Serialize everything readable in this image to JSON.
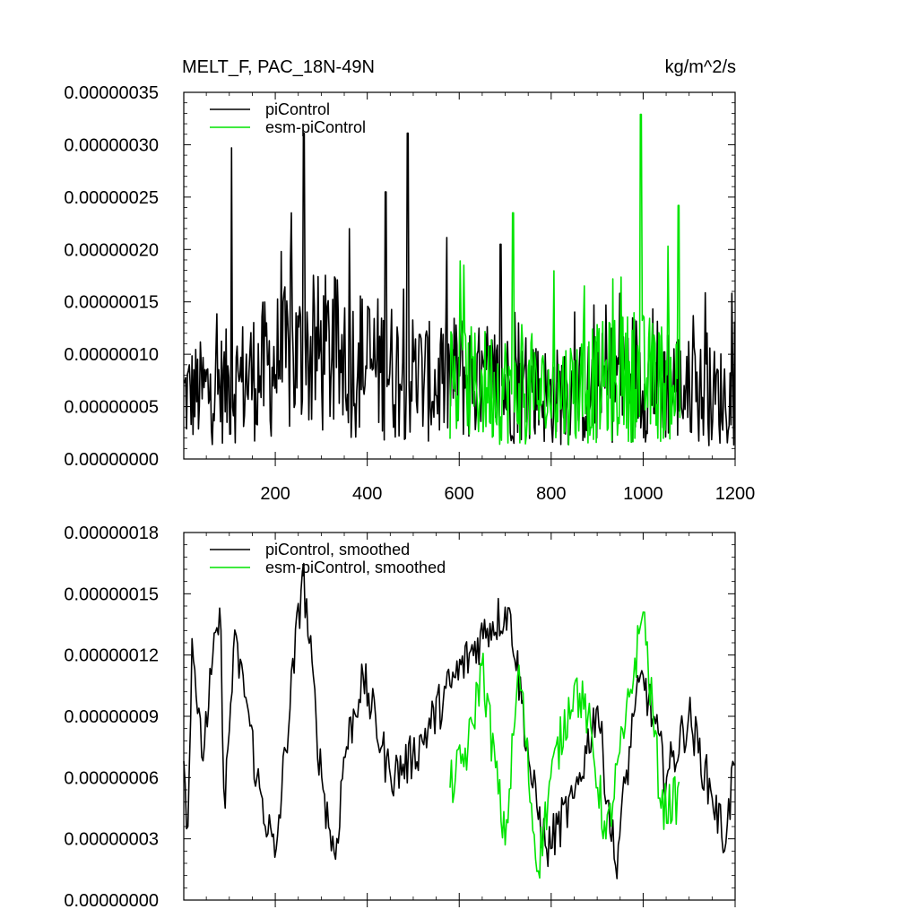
{
  "page": {
    "title_left": "MELT_F, PAC_18N-49N",
    "title_right": "kg/m^2/s"
  },
  "colors": {
    "picontrol": "#000000",
    "esm_picontrol": "#00e400",
    "axis": "#000000"
  },
  "chart_data": [
    {
      "type": "line",
      "title": "MELT_F, PAC_18N-49N",
      "units": "kg/m^2/s",
      "xlim": [
        1,
        1200
      ],
      "ylim": [
        0.0,
        3.5e-07
      ],
      "x_ticks": [
        200,
        400,
        600,
        800,
        1000,
        1200
      ],
      "x_tick_labels": [
        "200",
        "400",
        "600",
        "800",
        "1000",
        "1200"
      ],
      "y_ticks": [
        0.0,
        5e-08,
        1e-07,
        1.5e-07,
        2e-07,
        2.5e-07,
        3e-07,
        3.5e-07
      ],
      "y_tick_labels": [
        "0.00000000",
        "0.00000005",
        "0.00000010",
        "0.00000015",
        "0.00000020",
        "0.00000025",
        "0.00000030",
        "0.00000035"
      ],
      "grid": false,
      "legend_position": "top-left",
      "series": [
        {
          "name": "piControl",
          "x_range": [
            1,
            1200
          ],
          "peaks": [
            [
              105,
              2.97e-07
            ],
            [
              262,
              3.11e-07
            ],
            [
              488,
              3.11e-07
            ],
            [
              235,
              2.35e-07
            ],
            [
              440,
              2.55e-07
            ],
            [
              690,
              2.05e-07
            ]
          ],
          "values_approx": [
            6e-08,
            6.5e-08,
            7e-08,
            8e-08,
            9e-08,
            9.5e-08,
            1e-07,
            9.5e-08,
            9e-08,
            8.5e-08,
            8e-08,
            7e-08,
            8e-08,
            7e-08,
            7e-08,
            6.5e-08,
            6e-08,
            6e-08,
            6.5e-08,
            8e-08,
            8e-08,
            7.5e-08,
            6.5e-08,
            6e-08,
            6e-08
          ]
        },
        {
          "name": "esm-piControl",
          "x_range": [
            580,
            1080
          ],
          "peaks": [
            [
              995,
              3.29e-07
            ],
            [
              1077,
              2.42e-07
            ],
            [
              717,
              2.35e-07
            ],
            [
              610,
              1.85e-07
            ]
          ],
          "values_approx": [
            7.5e-08,
            7e-08,
            7e-08,
            6.5e-08,
            6e-08,
            6.5e-08,
            7e-08,
            7.5e-08,
            8e-08,
            7.5e-08,
            7e-08
          ]
        }
      ]
    },
    {
      "type": "line",
      "xlim": [
        1,
        1200
      ],
      "ylim": [
        0.0,
        1.8e-07
      ],
      "x_ticks": [
        200,
        400,
        600,
        800,
        1000,
        1200
      ],
      "y_ticks": [
        0.0,
        3e-08,
        6e-08,
        9e-08,
        1.2e-07,
        1.5e-07,
        1.8e-07
      ],
      "y_tick_labels": [
        "0.00000000",
        "0.00000003",
        "0.00000006",
        "0.00000009",
        "0.00000012",
        "0.00000015",
        "0.00000018"
      ],
      "grid": false,
      "legend_position": "top-left",
      "series": [
        {
          "name": "piControl, smoothed",
          "x_range": [
            1,
            1200
          ],
          "anchors": [
            [
              1,
              6.8e-08
            ],
            [
              10,
              3.6e-08
            ],
            [
              20,
              1.28e-07
            ],
            [
              40,
              7e-08
            ],
            [
              80,
              1.43e-07
            ],
            [
              90,
              4.5e-08
            ],
            [
              110,
              1.23e-07
            ],
            [
              130,
              1.1e-07
            ],
            [
              160,
              6e-08
            ],
            [
              200,
              2.1e-08
            ],
            [
              260,
              1.61e-07
            ],
            [
              300,
              6e-08
            ],
            [
              330,
              2e-08
            ],
            [
              350,
              7e-08
            ],
            [
              390,
              1.1e-07
            ],
            [
              450,
              6e-08
            ],
            [
              500,
              7e-08
            ],
            [
              580,
              1.05e-07
            ],
            [
              660,
              1.33e-07
            ],
            [
              710,
              1.43e-07
            ],
            [
              760,
              5.5e-08
            ],
            [
              790,
              2.5e-08
            ],
            [
              850,
              5e-08
            ],
            [
              900,
              9.5e-08
            ],
            [
              940,
              1.7e-08
            ],
            [
              980,
              9e-08
            ],
            [
              1000,
              1.1e-07
            ],
            [
              1050,
              6e-08
            ],
            [
              1100,
              9e-08
            ],
            [
              1150,
              5e-08
            ],
            [
              1180,
              2.8e-08
            ],
            [
              1200,
              7.4e-08
            ]
          ]
        },
        {
          "name": "esm-piControl, smoothed",
          "x_range": [
            580,
            1080
          ],
          "anchors": [
            [
              580,
              5.5e-08
            ],
            [
              620,
              7.5e-08
            ],
            [
              650,
              1.15e-07
            ],
            [
              700,
              2.7e-08
            ],
            [
              730,
              1.15e-07
            ],
            [
              770,
              1.4e-08
            ],
            [
              800,
              6e-08
            ],
            [
              850,
              1.05e-07
            ],
            [
              880,
              9e-08
            ],
            [
              920,
              3e-08
            ],
            [
              960,
              8.5e-08
            ],
            [
              1000,
              1.41e-07
            ],
            [
              1040,
              4.5e-08
            ],
            [
              1080,
              5e-08
            ]
          ]
        }
      ]
    }
  ]
}
